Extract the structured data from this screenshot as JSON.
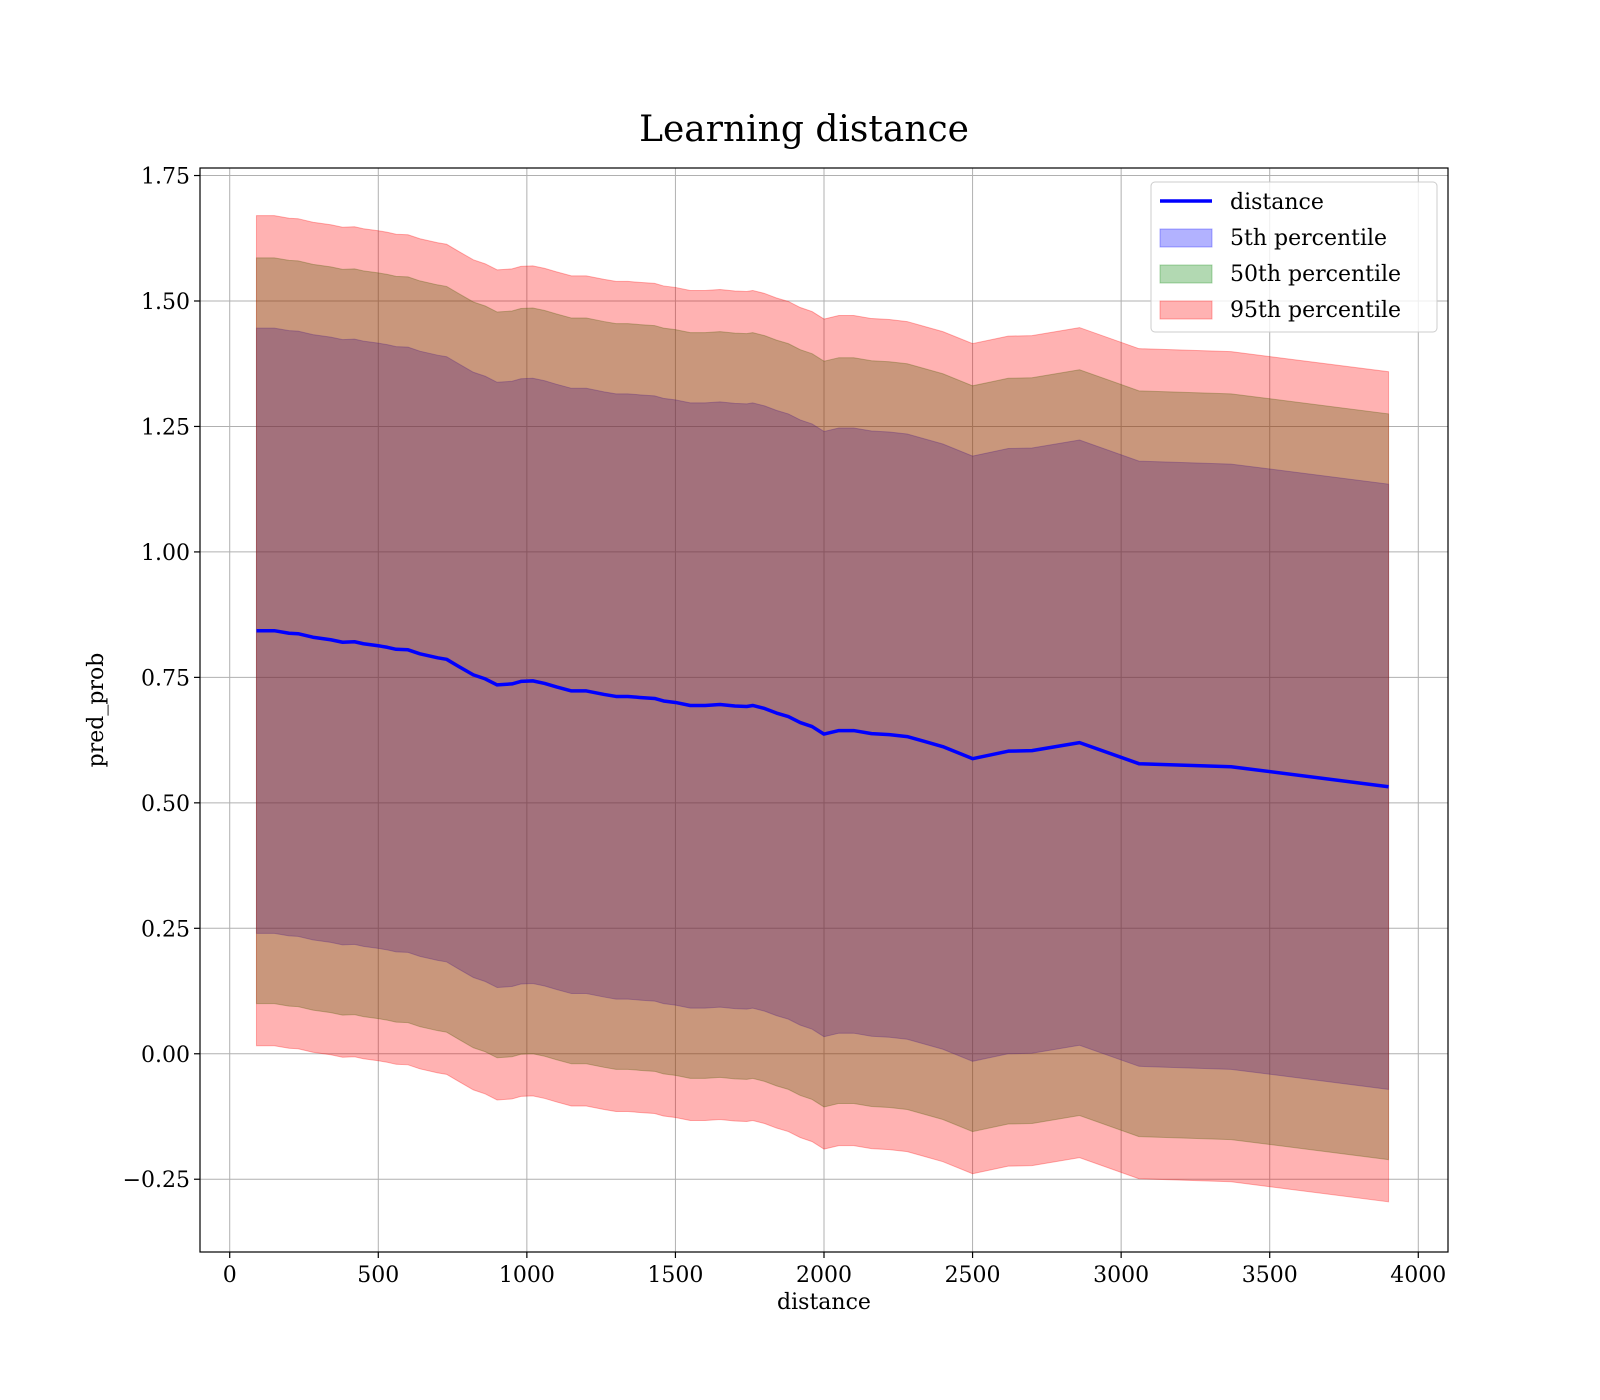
{
  "chart_data": {
    "type": "line",
    "title": "Learning distance",
    "xlabel": "distance",
    "ylabel": "pred_prob",
    "xlim": [
      -100,
      4100
    ],
    "ylim": [
      -0.395,
      1.765
    ],
    "xticks": [
      0,
      500,
      1000,
      1500,
      2000,
      2500,
      3000,
      3500,
      4000
    ],
    "xtick_labels": [
      "0",
      "500",
      "1000",
      "1500",
      "2000",
      "2500",
      "3000",
      "3500",
      "4000"
    ],
    "yticks": [
      -0.25,
      0.0,
      0.25,
      0.5,
      0.75,
      1.0,
      1.25,
      1.5,
      1.75
    ],
    "ytick_labels": [
      "−0.25",
      "0.00",
      "0.25",
      "0.50",
      "0.75",
      "1.00",
      "1.25",
      "1.50",
      "1.75"
    ],
    "grid": true,
    "legend_position": "top-right",
    "x": [
      90,
      150,
      200,
      230,
      280,
      340,
      380,
      420,
      450,
      500,
      530,
      560,
      600,
      640,
      700,
      730,
      770,
      820,
      860,
      900,
      950,
      980,
      1020,
      1060,
      1100,
      1150,
      1200,
      1260,
      1300,
      1340,
      1380,
      1430,
      1460,
      1500,
      1550,
      1600,
      1650,
      1700,
      1740,
      1760,
      1800,
      1840,
      1880,
      1920,
      1960,
      2000,
      2050,
      2100,
      2160,
      2220,
      2280,
      2340,
      2400,
      2500,
      2620,
      2700,
      2860,
      3060,
      3370,
      3900
    ],
    "series": [
      {
        "name": "distance",
        "kind": "line",
        "color": "#0000ff",
        "values": [
          0.843,
          0.843,
          0.838,
          0.837,
          0.83,
          0.825,
          0.82,
          0.821,
          0.817,
          0.813,
          0.81,
          0.806,
          0.805,
          0.797,
          0.789,
          0.786,
          0.772,
          0.755,
          0.747,
          0.735,
          0.737,
          0.742,
          0.743,
          0.738,
          0.731,
          0.723,
          0.723,
          0.716,
          0.712,
          0.712,
          0.71,
          0.708,
          0.703,
          0.7,
          0.694,
          0.694,
          0.696,
          0.693,
          0.692,
          0.694,
          0.688,
          0.679,
          0.672,
          0.66,
          0.652,
          0.637,
          0.644,
          0.644,
          0.638,
          0.636,
          0.632,
          0.622,
          0.612,
          0.588,
          0.603,
          0.604,
          0.62,
          0.578,
          0.572,
          0.532
        ]
      },
      {
        "name": "5th percentile",
        "kind": "band",
        "color": "#0000ff",
        "half_width": 0.603
      },
      {
        "name": "50th percentile",
        "kind": "band",
        "color": "#008000",
        "half_width": 0.743
      },
      {
        "name": "95th percentile",
        "kind": "band",
        "color": "#ff0000",
        "half_width": 0.827
      }
    ]
  }
}
